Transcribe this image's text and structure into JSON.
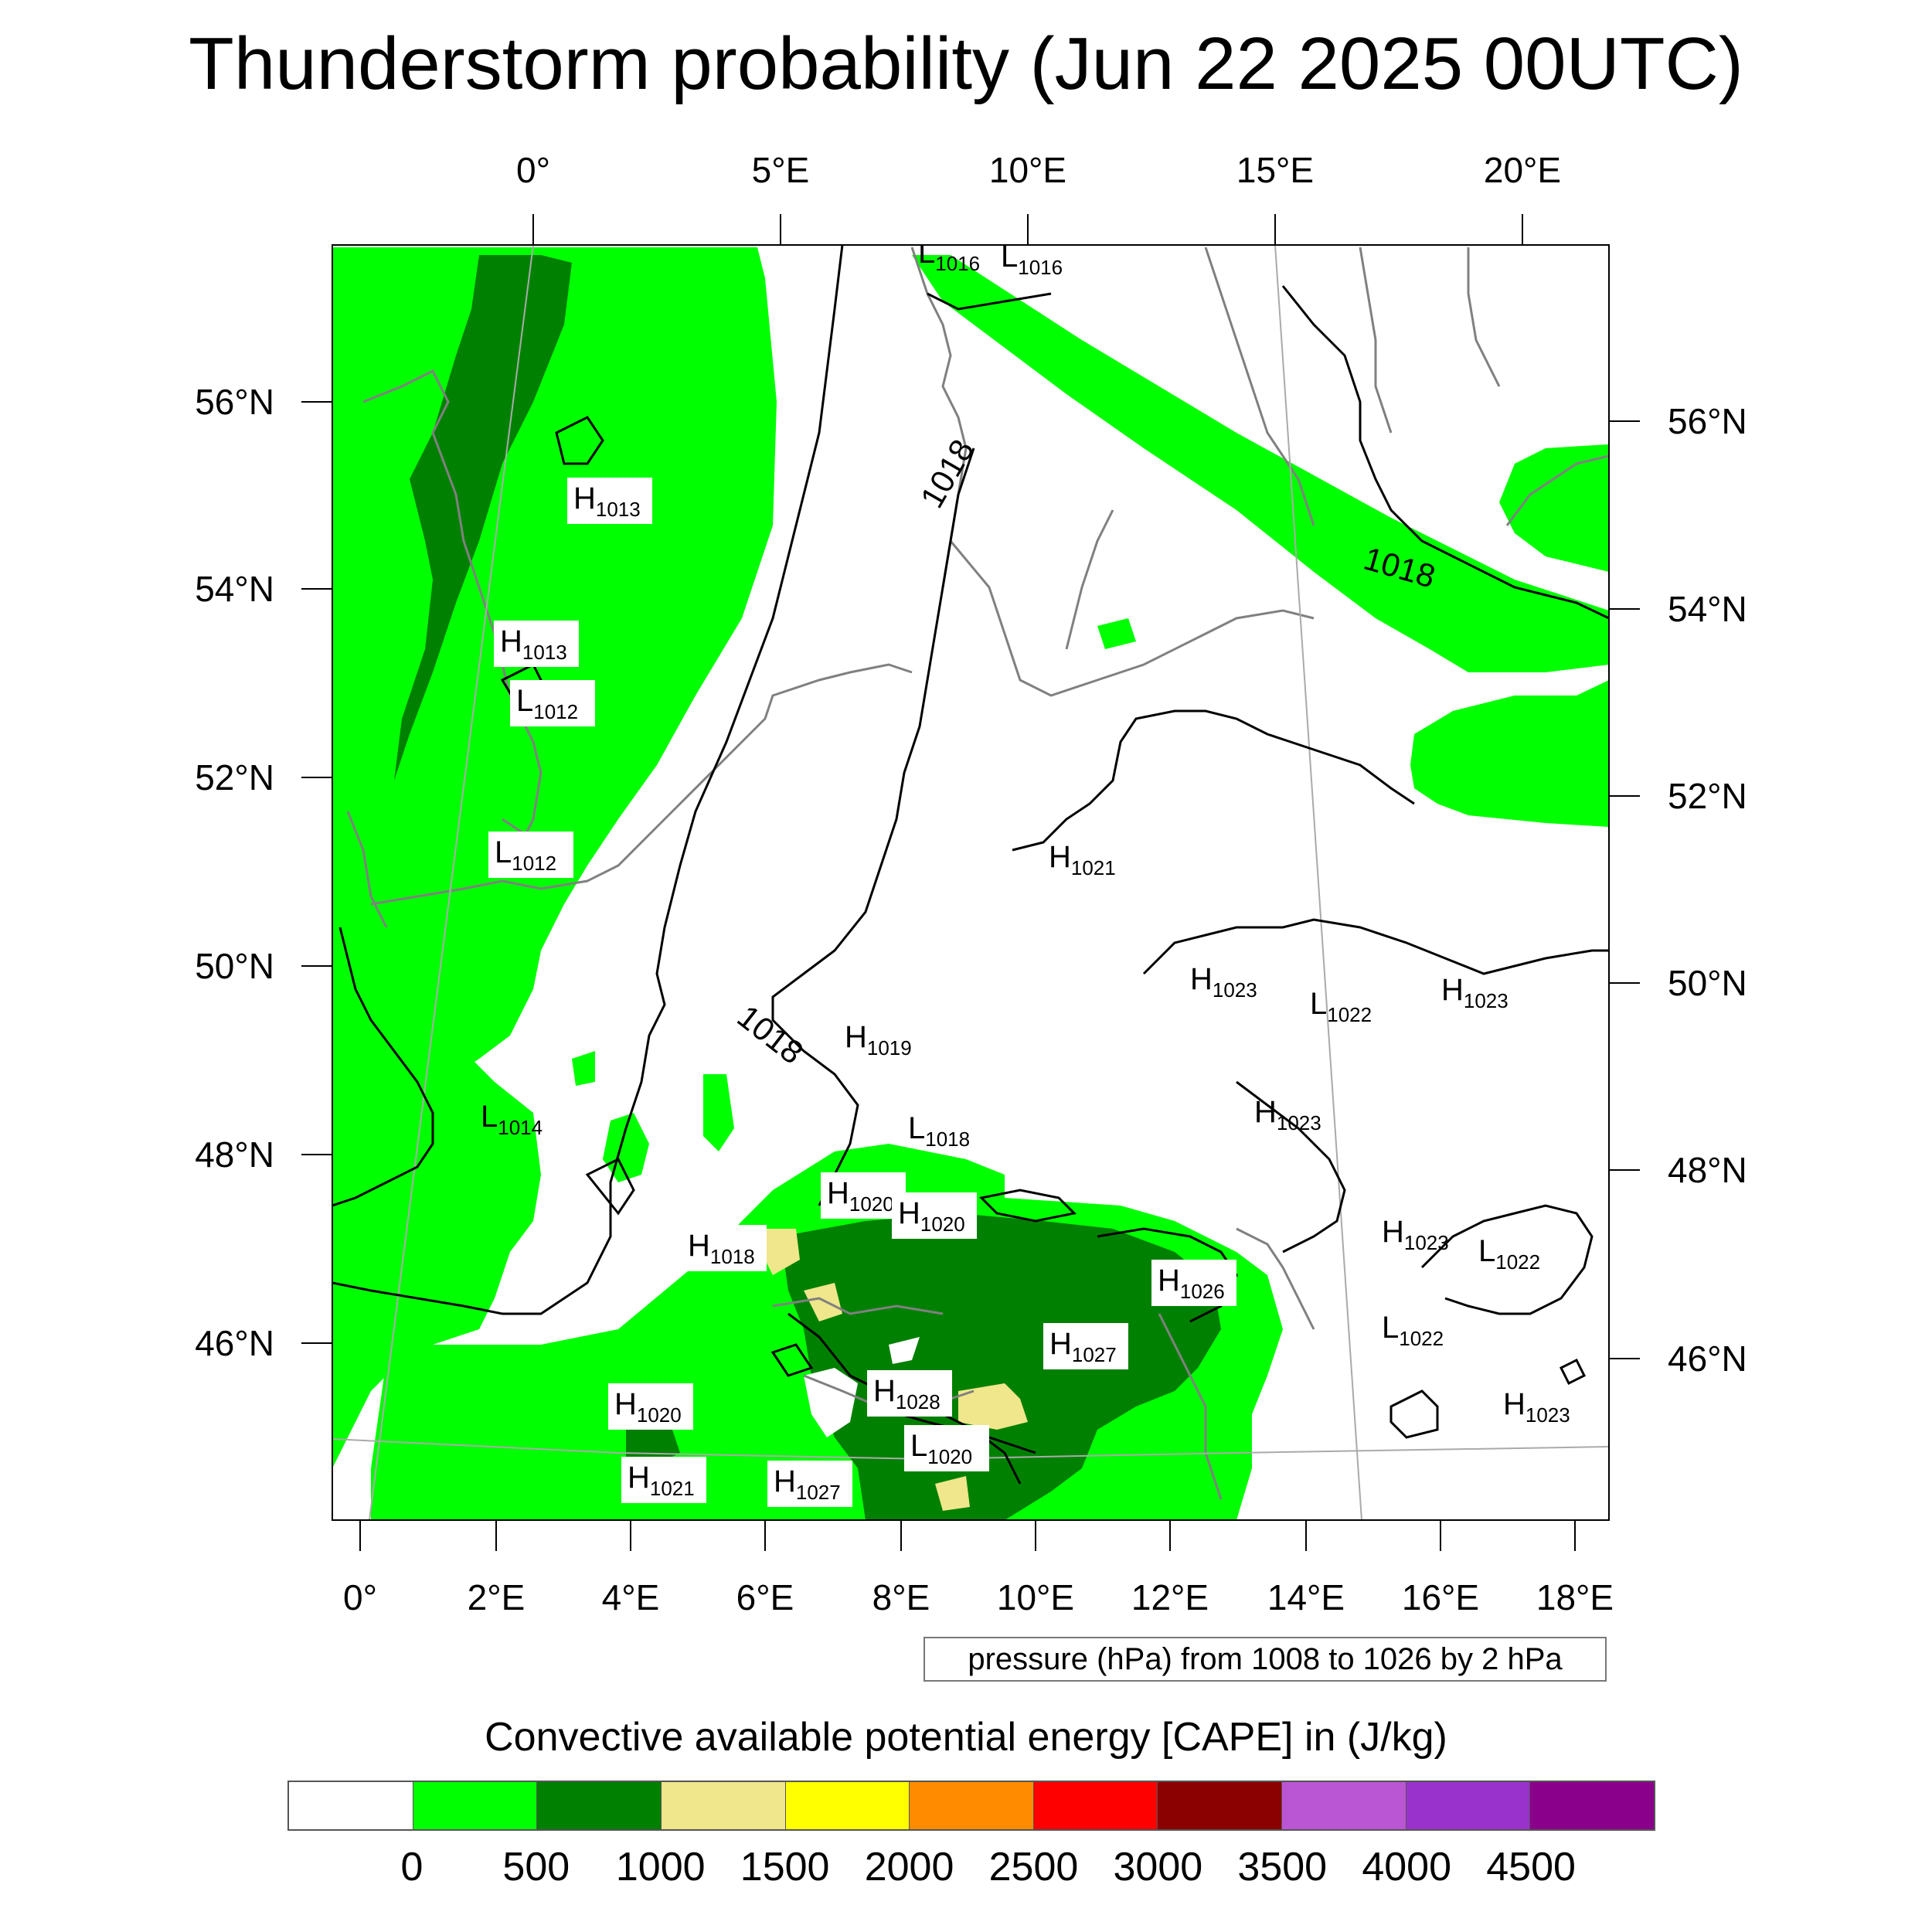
{
  "title": "Thunderstorm probability (Jun 22 2025 00UTC)",
  "top_lon_labels": [
    "0°",
    "5°E",
    "10°E",
    "15°E",
    "20°E"
  ],
  "bottom_lon_labels": [
    "0°",
    "2°E",
    "4°E",
    "6°E",
    "8°E",
    "10°E",
    "12°E",
    "14°E",
    "16°E",
    "18°E"
  ],
  "left_lat_labels": [
    "56°N",
    "54°N",
    "52°N",
    "50°N",
    "48°N",
    "46°N"
  ],
  "right_lat_labels": [
    "56°N",
    "54°N",
    "52°N",
    "50°N",
    "48°N",
    "46°N"
  ],
  "contour_labels": [
    "1018",
    "1018",
    "1018"
  ],
  "pressure_centers": [
    {
      "type": "L",
      "value": "1016"
    },
    {
      "type": "L",
      "value": "1016"
    },
    {
      "type": "H",
      "value": "1013"
    },
    {
      "type": "H",
      "value": "1013"
    },
    {
      "type": "L",
      "value": "1012"
    },
    {
      "type": "L",
      "value": "1012"
    },
    {
      "type": "L",
      "value": "1014"
    },
    {
      "type": "H",
      "value": "1019"
    },
    {
      "type": "L",
      "value": "1018"
    },
    {
      "type": "H",
      "value": "1021"
    },
    {
      "type": "H",
      "value": "1023"
    },
    {
      "type": "L",
      "value": "1022"
    },
    {
      "type": "H",
      "value": "1023"
    },
    {
      "type": "H",
      "value": "1023"
    },
    {
      "type": "H",
      "value": "1020"
    },
    {
      "type": "H",
      "value": "1020"
    },
    {
      "type": "H",
      "value": "1018"
    },
    {
      "type": "H",
      "value": "1026"
    },
    {
      "type": "H",
      "value": "1027"
    },
    {
      "type": "H",
      "value": "1028"
    },
    {
      "type": "H",
      "value": "1020"
    },
    {
      "type": "L",
      "value": "1020"
    },
    {
      "type": "H",
      "value": "1021"
    },
    {
      "type": "H",
      "value": "1027"
    },
    {
      "type": "H",
      "value": "1023"
    },
    {
      "type": "L",
      "value": "1022"
    },
    {
      "type": "L",
      "value": "1022"
    },
    {
      "type": "H",
      "value": "1023"
    }
  ],
  "pressure_note": "pressure (hPa) from 1008 to 1026 by 2 hPa",
  "colorbar": {
    "title": "Convective available potential energy [CAPE] in (J/kg)",
    "colors": [
      "#ffffff",
      "#00ff00",
      "#008000",
      "#f0e68c",
      "#ffff00",
      "#ff8c00",
      "#ff0000",
      "#8b0000",
      "#ba55d3",
      "#9932cc",
      "#8b008b"
    ],
    "labels": [
      "0",
      "500",
      "1000",
      "1500",
      "2000",
      "2500",
      "3000",
      "3500",
      "4000",
      "4500"
    ]
  }
}
